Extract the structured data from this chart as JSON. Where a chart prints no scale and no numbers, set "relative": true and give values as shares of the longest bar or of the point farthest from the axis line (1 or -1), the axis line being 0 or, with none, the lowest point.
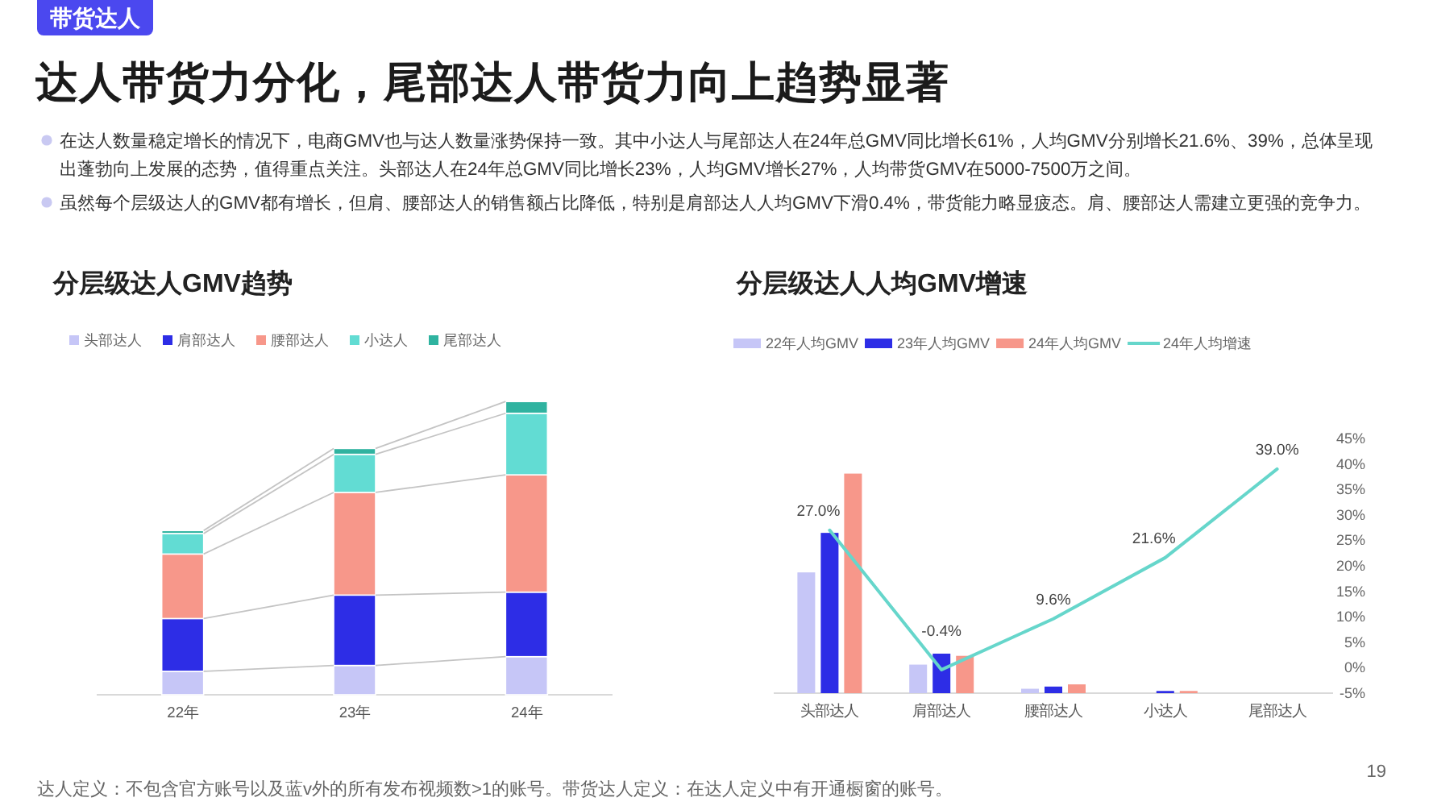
{
  "chart_data": [
    {
      "type": "other",
      "title": "达人带货力分化，尾部达人带货力向上趋势显著",
      "annotations": [
        "带货达人",
        "在达人数量稳定增长的情况下，电商GMV也与达人数量涨势保持一致。其中小达人与尾部达人在24年总GMV同比增长61%，人均GMV分别增长21.6%、39%，总体呈现出蓬勃向上发展的态势，值得重点关注。头部达人在24年总GMV同比增长23%，人均GMV增长27%，人均带货GMV在5000-7500万之间。",
        "虽然每个层级达人的GMV都有增长，但肩、腰部达人的销售额占比降低，特别是肩部达人人均GMV下滑0.4%，带货能力略显疲态。肩、腰部达人需建立更强的竞争力。",
        "达人定义：不包含官方账号以及蓝v外的所有发布视频数>1的账号。带货达人定义：在达人定义中有开通橱窗的账号。",
        "19"
      ]
    },
    {
      "type": "bar",
      "title": "分层级达人GMV趋势",
      "categories": [
        "22年",
        "23年",
        "24年"
      ],
      "stacked": true,
      "relative": true,
      "legend": "top",
      "series": [
        {
          "name": "头部达人",
          "color": "#c6c6f7",
          "values": [
            0.08,
            0.1,
            0.13
          ]
        },
        {
          "name": "肩部达人",
          "color": "#2d2de6",
          "values": [
            0.18,
            0.24,
            0.22
          ]
        },
        {
          "name": "腰部达人",
          "color": "#f7978a",
          "values": [
            0.22,
            0.35,
            0.4
          ]
        },
        {
          "name": "小达人",
          "color": "#62dcd3",
          "values": [
            0.07,
            0.13,
            0.21
          ]
        },
        {
          "name": "尾部达人",
          "color": "#2fb3a0",
          "values": [
            0.01,
            0.02,
            0.04
          ]
        }
      ]
    },
    {
      "type": "bar",
      "title": "分层级达人人均GMV增速",
      "categories": [
        "头部达人",
        "肩部达人",
        "腰部达人",
        "小达人",
        "尾部达人"
      ],
      "relative": true,
      "legend": "top",
      "series": [
        {
          "name": "22年人均GMV",
          "color": "#c6c6f7",
          "values": [
            0.55,
            0.13,
            0.02,
            null,
            null
          ]
        },
        {
          "name": "23年人均GMV",
          "color": "#2d2de6",
          "values": [
            0.73,
            0.18,
            0.03,
            0.01,
            null
          ]
        },
        {
          "name": "24年人均GMV",
          "color": "#f7978a",
          "values": [
            1,
            0.17,
            0.04,
            0.01,
            null
          ]
        }
      ]
    },
    {
      "type": "line",
      "categories": [
        null,
        null,
        null,
        null,
        null
      ],
      "legend": "top",
      "ylim": [
        -5,
        45
      ],
      "yticks": [
        {
          "value": -5,
          "label": "-5%"
        },
        {
          "value": 0,
          "label": "0%"
        },
        {
          "value": 5,
          "label": "5%"
        },
        {
          "value": 10,
          "label": "10%"
        },
        {
          "value": 15,
          "label": "15%"
        },
        {
          "value": 20,
          "label": "20%"
        },
        {
          "value": 25,
          "label": "25%"
        },
        {
          "value": 30,
          "label": "30%"
        },
        {
          "value": 35,
          "label": "35%"
        },
        {
          "value": 40,
          "label": "40%"
        },
        {
          "value": 45,
          "label": "45%"
        }
      ],
      "series": [
        {
          "name": "24年人均增速",
          "color": "#66d6cb",
          "values": [
            27.0,
            -0.4,
            9.6,
            21.6,
            39.0
          ],
          "value_labels": [
            "27.0%",
            "-0.4%",
            "9.6%",
            "21.6%",
            "39.0%"
          ]
        }
      ]
    }
  ]
}
